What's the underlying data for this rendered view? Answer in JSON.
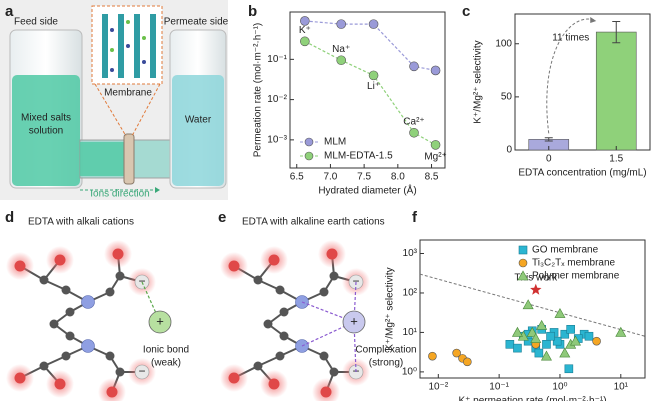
{
  "panel_labels": [
    "a",
    "b",
    "c",
    "d",
    "e",
    "f"
  ],
  "panel_a": {
    "feed_side": "Feed side",
    "permeate_side": "Permeate side",
    "feed_solution": [
      "Mixed salts",
      "solution"
    ],
    "membrane": "Membrane",
    "permeate_solution": "Water",
    "ions_direction": "Ions direction"
  },
  "chart_data": [
    {
      "type": "line",
      "x": [
        6.62,
        7.16,
        7.64,
        8.24,
        8.56
      ],
      "point_labels": [
        "K⁺",
        "Na⁺",
        "Li⁺",
        "Ca²⁺",
        "Mg²⁺"
      ],
      "series": [
        {
          "name": "MLM",
          "color": "#9a9ad8",
          "values": [
            0.9,
            0.75,
            0.75,
            0.067,
            0.053
          ]
        },
        {
          "name": "MLM-EDTA-1.5",
          "color": "#8fd17a",
          "values": [
            0.28,
            0.095,
            0.04,
            0.0015,
            0.00075
          ]
        }
      ],
      "xlabel": "Hydrated diameter (Å)",
      "ylabel": "Permeation rate (mol·m⁻²·h⁻¹)",
      "xlim": [
        6.4,
        8.7
      ],
      "xticks": [
        6.5,
        {
          "value": 7,
          "label": "7.0"
        },
        7.5,
        {
          "value": 8,
          "label": "8.0"
        },
        8.5
      ],
      "log_y": true,
      "ylim": [
        0.0002,
        1.5
      ],
      "yticks": [
        {
          "value": 0.001,
          "label": "10⁻³"
        },
        {
          "value": 0.01,
          "label": "10⁻²"
        },
        {
          "value": 0.1,
          "label": "10⁻¹"
        }
      ],
      "legend": "lower left"
    },
    {
      "type": "bar",
      "categories": [
        "0",
        "1.5"
      ],
      "values": [
        10,
        111
      ],
      "errors": [
        1.5,
        10
      ],
      "colors": [
        "#a9a9dc",
        "#8fd17a"
      ],
      "xlabel": "EDTA concentration (mg/mL)",
      "ylabel": "K⁺/Mg²⁺ selectivity",
      "ylim": [
        0,
        128
      ],
      "yticks": [
        0,
        50,
        100
      ],
      "annotation": "11 times"
    },
    {
      "type": "scatter",
      "log_x": true,
      "log_y": true,
      "xlim": [
        0.005,
        25
      ],
      "ylim": [
        0.7,
        2200
      ],
      "xticks": [
        {
          "value": 0.01,
          "label": "10⁻²"
        },
        {
          "value": 0.1,
          "label": "10⁻¹"
        },
        {
          "value": 1,
          "label": "10⁰"
        },
        {
          "value": 10,
          "label": "10¹"
        }
      ],
      "yticks": [
        {
          "value": 1,
          "label": "10⁰"
        },
        {
          "value": 10,
          "label": "10¹"
        },
        {
          "value": 100,
          "label": "10²"
        },
        {
          "value": 1000,
          "label": "10³"
        }
      ],
      "xlabel": "K⁺ permeation rate (mol·m⁻²·h⁻¹)",
      "ylabel": "K⁺/Mg²⁺ selectivity",
      "legend": "upper right",
      "series": [
        {
          "name": "GO membrane",
          "marker": "square",
          "color": "#2bb5d1",
          "x": [
            0.35,
            0.25,
            0.5,
            0.8,
            1.2,
            2.5,
            3,
            1.5,
            0.15,
            0.2,
            0.3,
            0.4,
            0.6,
            1.0,
            0.45,
            1.4,
            0.9,
            2,
            0.7,
            0.3
          ],
          "y": [
            11,
            8,
            12,
            10,
            9,
            9,
            8,
            12,
            5,
            4,
            6,
            4,
            5,
            5,
            3,
            1.2,
            6,
            7,
            8,
            9
          ]
        },
        {
          "name": "Ti₃C₂Tₓ membrane",
          "marker": "circle",
          "color": "#f5a623",
          "x": [
            0.008,
            0.02,
            0.025,
            0.03,
            0.4,
            4
          ],
          "y": [
            2.5,
            3,
            2.2,
            1.8,
            5,
            6
          ]
        },
        {
          "name": "Polymer membrane",
          "marker": "triangle",
          "color": "#8fc97a",
          "x": [
            0.3,
            0.5,
            0.35,
            0.25,
            1,
            0.6,
            1.2,
            1.5,
            10,
            0.4,
            0.2,
            1.8
          ],
          "y": [
            50,
            15,
            10,
            8,
            30,
            2.5,
            3,
            5,
            10,
            7,
            10,
            6
          ]
        }
      ],
      "highlight": {
        "label": "This work",
        "color": "#d03030",
        "x": 0.4,
        "y": 120
      },
      "reference_line": {
        "x": [
          0.005,
          25
        ],
        "y": [
          300,
          8
        ]
      }
    }
  ],
  "panel_d": {
    "title": "EDTA with alkali cations",
    "anion_sign": "−",
    "cation_sign": "+",
    "bond_label": [
      "Ionic bond",
      "(weak)"
    ]
  },
  "panel_e": {
    "title": "EDTA with alkaline earth cations",
    "anion_sign": "−",
    "cation_sign": "+",
    "bond_label": [
      "Complexation",
      "(strong)"
    ]
  }
}
